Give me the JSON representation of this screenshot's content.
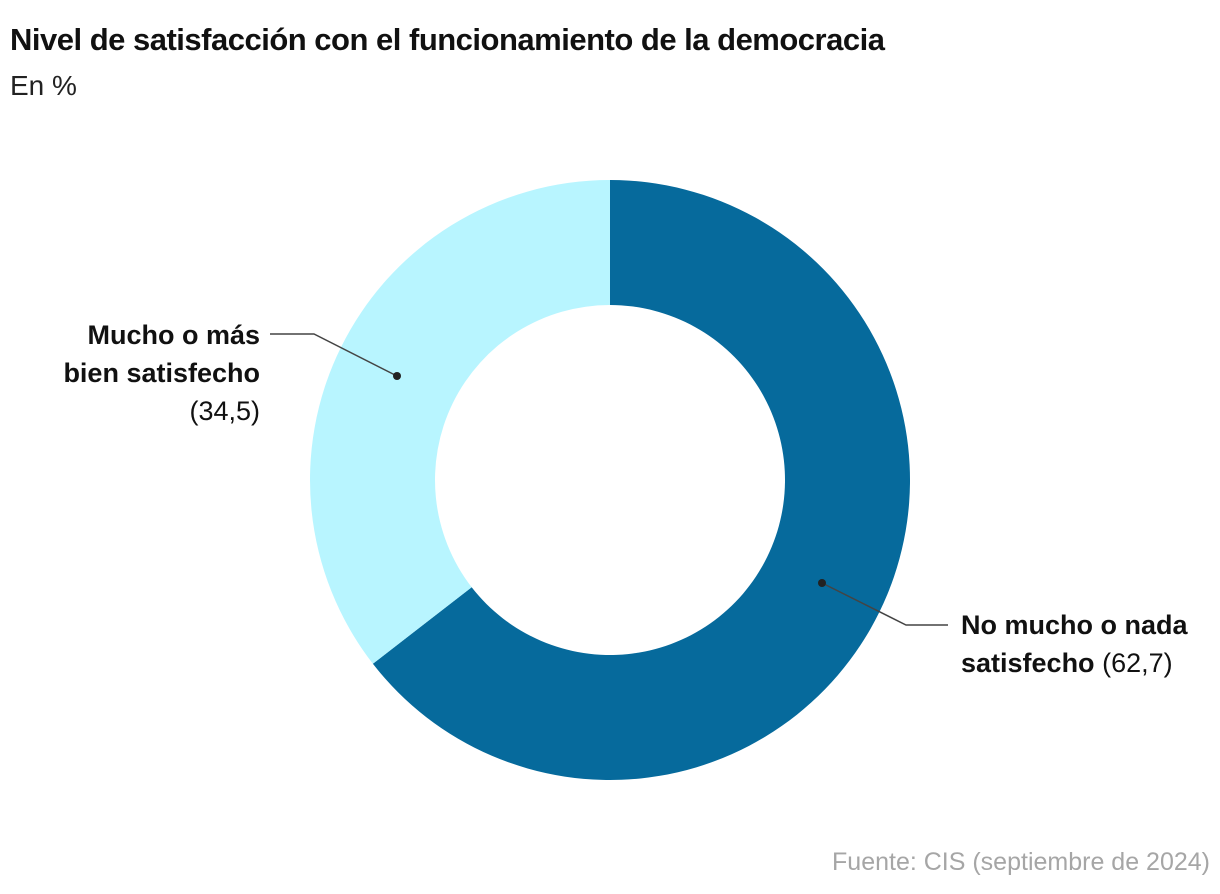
{
  "header": {
    "title": "Nivel de satisfacción con el funcionamiento de la democracia",
    "subtitle": "En %"
  },
  "labels": {
    "left_name_line1": "Mucho o más",
    "left_name_line2": "bien satisfecho",
    "left_value": "(34,5)",
    "right_name_line1": "No mucho o nada",
    "right_name_line2": "satisfecho",
    "right_value": "(62,7)"
  },
  "footer": {
    "source": "Fuente: CIS (septiembre de 2024)"
  },
  "chart_data": {
    "type": "pie",
    "variant": "donut",
    "title": "Nivel de satisfacción con el funcionamiento de la democracia",
    "subtitle": "En %",
    "categories": [
      "No mucho o nada satisfecho",
      "Mucho o más bien satisfecho"
    ],
    "values": [
      62.7,
      34.5
    ],
    "colors": [
      "#066a9c",
      "#b8f5ff"
    ],
    "start_angle": "12 o'clock, clockwise",
    "legend": "none (direct labels)"
  }
}
